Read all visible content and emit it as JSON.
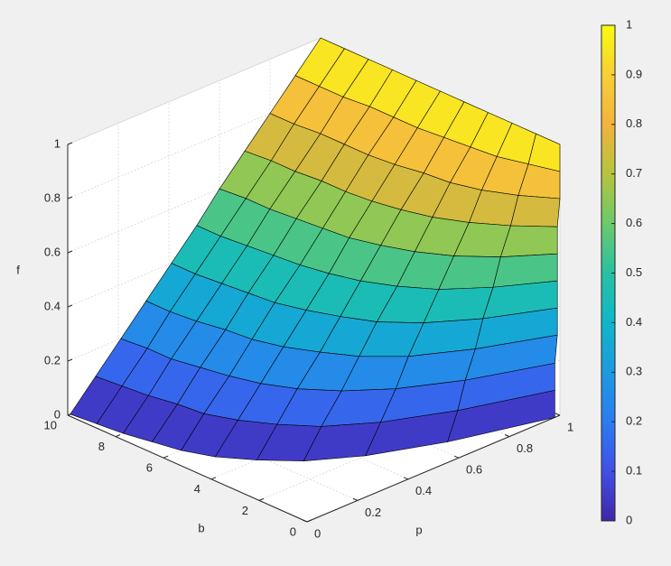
{
  "chart_data": {
    "type": "surface",
    "xlabel": "p",
    "ylabel": "b",
    "zlabel": "f",
    "y": [
      0,
      1,
      2,
      3,
      4,
      5,
      6,
      7,
      8,
      9,
      10
    ],
    "x": [
      [
        0.98,
        0.98,
        0.98,
        0.99,
        0.99,
        0.99,
        0.99,
        0.99,
        1,
        1,
        1
      ],
      [
        0.65,
        0.69,
        0.72,
        0.76,
        0.79,
        0.83,
        0.86,
        0.9,
        0.93,
        0.97,
        1
      ],
      [
        0.42,
        0.48,
        0.54,
        0.59,
        0.65,
        0.71,
        0.77,
        0.83,
        0.88,
        0.94,
        1
      ],
      [
        0.27,
        0.34,
        0.42,
        0.49,
        0.56,
        0.64,
        0.71,
        0.78,
        0.85,
        0.93,
        1
      ],
      [
        0.18,
        0.26,
        0.34,
        0.43,
        0.51,
        0.59,
        0.67,
        0.75,
        0.84,
        0.92,
        1
      ],
      [
        0.11,
        0.2,
        0.29,
        0.38,
        0.47,
        0.56,
        0.64,
        0.73,
        0.82,
        0.91,
        1
      ],
      [
        0.07,
        0.16,
        0.26,
        0.35,
        0.44,
        0.54,
        0.63,
        0.72,
        0.81,
        0.91,
        1
      ],
      [
        0.05,
        0.15,
        0.24,
        0.34,
        0.43,
        0.53,
        0.62,
        0.72,
        0.81,
        0.91,
        1
      ],
      [
        0.03,
        0.13,
        0.22,
        0.32,
        0.42,
        0.52,
        0.61,
        0.71,
        0.81,
        0.9,
        1
      ],
      [
        0.02,
        0.12,
        0.22,
        0.31,
        0.41,
        0.51,
        0.61,
        0.71,
        0.8,
        0.9,
        1
      ],
      [
        0.01,
        0.11,
        0.21,
        0.31,
        0.41,
        0.51,
        0.6,
        0.7,
        0.8,
        0.9,
        1
      ]
    ],
    "z": [
      [
        0,
        0.1,
        0.2,
        0.3,
        0.4,
        0.5,
        0.6,
        0.7,
        0.8,
        0.9,
        1
      ],
      [
        0,
        0.1,
        0.2,
        0.3,
        0.4,
        0.5,
        0.6,
        0.7,
        0.8,
        0.9,
        1
      ],
      [
        0,
        0.1,
        0.2,
        0.3,
        0.4,
        0.5,
        0.6,
        0.7,
        0.8,
        0.9,
        1
      ],
      [
        0,
        0.1,
        0.2,
        0.3,
        0.4,
        0.5,
        0.6,
        0.7,
        0.8,
        0.9,
        1
      ],
      [
        0,
        0.1,
        0.2,
        0.3,
        0.4,
        0.5,
        0.6,
        0.7,
        0.8,
        0.9,
        1
      ],
      [
        0,
        0.1,
        0.2,
        0.3,
        0.4,
        0.5,
        0.6,
        0.7,
        0.8,
        0.9,
        1
      ],
      [
        0,
        0.1,
        0.2,
        0.3,
        0.4,
        0.5,
        0.6,
        0.7,
        0.8,
        0.9,
        1
      ],
      [
        0,
        0.1,
        0.2,
        0.3,
        0.4,
        0.5,
        0.6,
        0.7,
        0.8,
        0.9,
        1
      ],
      [
        0,
        0.1,
        0.2,
        0.3,
        0.4,
        0.5,
        0.6,
        0.7,
        0.8,
        0.9,
        1
      ],
      [
        0,
        0.1,
        0.2,
        0.3,
        0.4,
        0.5,
        0.6,
        0.7,
        0.8,
        0.9,
        1
      ],
      [
        0,
        0.1,
        0.2,
        0.3,
        0.4,
        0.5,
        0.6,
        0.7,
        0.8,
        0.9,
        1
      ]
    ],
    "xlim": [
      0,
      1
    ],
    "ylim": [
      0,
      10
    ],
    "zlim": [
      0,
      1
    ],
    "xticks": [
      0,
      0.2,
      0.4,
      0.6,
      0.8,
      1
    ],
    "yticks": [
      0,
      2,
      4,
      6,
      8,
      10
    ],
    "zticks": [
      0,
      0.2,
      0.4,
      0.6,
      0.8,
      1
    ],
    "grid": true,
    "colormap": [
      "#3e26a8",
      "#4150e6",
      "#2a7cf0",
      "#1e9ae0",
      "#0fb6c8",
      "#28c1a3",
      "#6cc96a",
      "#b5c43f",
      "#f2b23e",
      "#f8cf35",
      "#f9fb0e"
    ],
    "clim": [
      0,
      1
    ],
    "colorbar_ticks": [
      0,
      0.1,
      0.2,
      0.3,
      0.4,
      0.5,
      0.6,
      0.7,
      0.8,
      0.9,
      1
    ]
  }
}
